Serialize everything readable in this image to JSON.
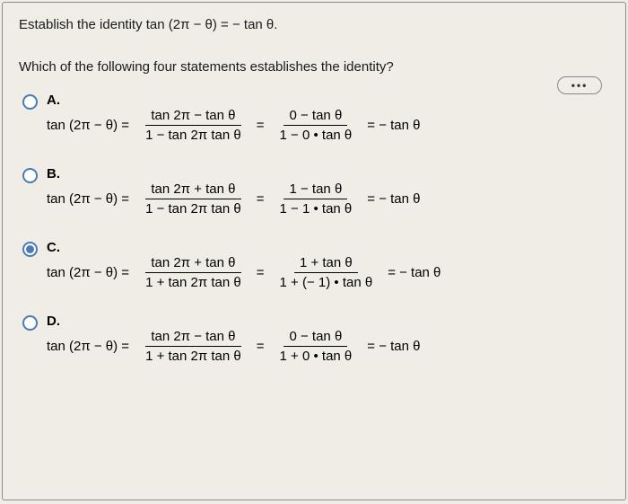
{
  "question": "Establish the identity tan (2π − θ) = − tan θ.",
  "prompt": "Which of the following four statements establishes the identity?",
  "more_label": "•••",
  "colors": {
    "background": "#f0ede6",
    "border": "#8a8a8a",
    "radio_border": "#4a7ab8",
    "radio_fill": "#4a7ab8",
    "text": "#1a1a1a"
  },
  "selected": 2,
  "options": [
    {
      "label": "A.",
      "lhs": "tan (2π − θ) =",
      "frac1_num": "tan 2π − tan θ",
      "frac1_den": "1 − tan 2π tan θ",
      "frac2_num": "0 − tan θ",
      "frac2_den": "1 − 0 • tan θ",
      "rhs": "= − tan θ"
    },
    {
      "label": "B.",
      "lhs": "tan (2π − θ) =",
      "frac1_num": "tan 2π + tan θ",
      "frac1_den": "1 − tan 2π tan θ",
      "frac2_num": "1 − tan θ",
      "frac2_den": "1 − 1 • tan θ",
      "rhs": "= − tan θ"
    },
    {
      "label": "C.",
      "lhs": "tan (2π − θ) =",
      "frac1_num": "tan 2π + tan θ",
      "frac1_den": "1 + tan 2π tan θ",
      "frac2_num": "1 + tan θ",
      "frac2_den": "1 + (− 1) • tan θ",
      "rhs": "= − tan θ"
    },
    {
      "label": "D.",
      "lhs": "tan (2π − θ) =",
      "frac1_num": "tan 2π − tan θ",
      "frac1_den": "1 + tan 2π tan θ",
      "frac2_num": "0 − tan θ",
      "frac2_den": "1 + 0 • tan θ",
      "rhs": "= − tan θ"
    }
  ]
}
